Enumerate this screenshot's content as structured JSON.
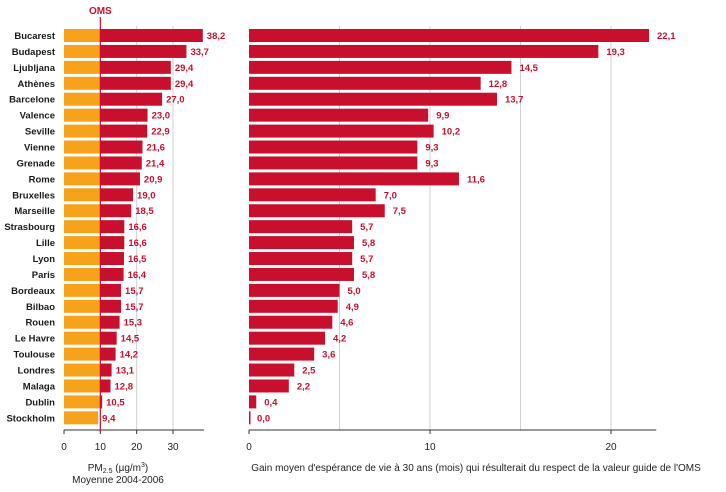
{
  "chart_data": [
    {
      "type": "bar",
      "orientation": "horizontal",
      "categories": [
        "Bucarest",
        "Budapest",
        "Ljubljana",
        "Athènes",
        "Barcelone",
        "Valence",
        "Seville",
        "Vienne",
        "Grenade",
        "Rome",
        "Bruxelles",
        "Marseille",
        "Strasbourg",
        "Lille",
        "Lyon",
        "Paris",
        "Bordeaux",
        "Bilbao",
        "Rouen",
        "Le Havre",
        "Toulouse",
        "Londres",
        "Malaga",
        "Dublin",
        "Stockholm"
      ],
      "values": [
        38.2,
        33.7,
        29.4,
        29.4,
        27.0,
        23.0,
        22.9,
        21.6,
        21.4,
        20.9,
        19.0,
        18.5,
        16.6,
        16.6,
        16.5,
        16.4,
        15.7,
        15.7,
        15.3,
        14.5,
        14.2,
        13.1,
        12.8,
        10.5,
        9.4
      ],
      "value_labels": [
        "38,2",
        "33,7",
        "29,4",
        "29,4",
        "27,0",
        "23,0",
        "22,9",
        "21,6",
        "21,4",
        "20,9",
        "19,0",
        "18,5",
        "16,6",
        "16,6",
        "16,5",
        "16,4",
        "15,7",
        "15,7",
        "15,3",
        "14,5",
        "14,2",
        "13,1",
        "12,8",
        "10,5",
        "9,4"
      ],
      "reference_line": {
        "label": "OMS",
        "value": 10
      },
      "xlabel": "PM2.5 (µg/m³)",
      "xlabel_main": "PM",
      "xlabel_sub": "2.5",
      "xlabel_unit": " (µg/m",
      "xlabel_sup": "3",
      "xlabel_close": ")",
      "xlabel2": "Moyenne 2004-2006",
      "xlim": [
        0,
        38.2
      ],
      "xticks": [
        "0",
        "10",
        "20",
        "30"
      ],
      "grid": true,
      "colors": {
        "bar": "#c8102e",
        "below_oms": "#f7a21b",
        "line": "#c8102e"
      }
    },
    {
      "type": "bar",
      "orientation": "horizontal",
      "categories": [
        "Bucarest",
        "Budapest",
        "Ljubljana",
        "Athènes",
        "Barcelone",
        "Valence",
        "Seville",
        "Vienne",
        "Grenade",
        "Rome",
        "Bruxelles",
        "Marseille",
        "Strasbourg",
        "Lille",
        "Lyon",
        "Paris",
        "Bordeaux",
        "Bilbao",
        "Rouen",
        "Le Havre",
        "Toulouse",
        "Londres",
        "Malaga",
        "Dublin",
        "Stockholm"
      ],
      "values": [
        22.1,
        19.3,
        14.5,
        12.8,
        13.7,
        9.9,
        10.2,
        9.3,
        9.3,
        11.6,
        7.0,
        7.5,
        5.7,
        5.8,
        5.7,
        5.8,
        5.0,
        4.9,
        4.6,
        4.2,
        3.6,
        2.5,
        2.2,
        0.4,
        0.0
      ],
      "value_labels": [
        "22,1",
        "19,3",
        "14,5",
        "12,8",
        "13,7",
        "9,9",
        "10,2",
        "9,3",
        "9,3",
        "11,6",
        "7,0",
        "7,5",
        "5,7",
        "5,8",
        "5,7",
        "5,8",
        "5,0",
        "4,9",
        "4,6",
        "4,2",
        "3,6",
        "2,5",
        "2,2",
        "0,4",
        "0,0"
      ],
      "xlabel": "Gain moyen d'espérance de vie à 30 ans (mois) qui résulterait du respect de la valeur guide de l'OMS",
      "xlim": [
        0,
        22.1
      ],
      "xticks": [
        "0",
        "10",
        "20"
      ],
      "grid": true,
      "colors": {
        "bar": "#c8102e"
      }
    }
  ]
}
